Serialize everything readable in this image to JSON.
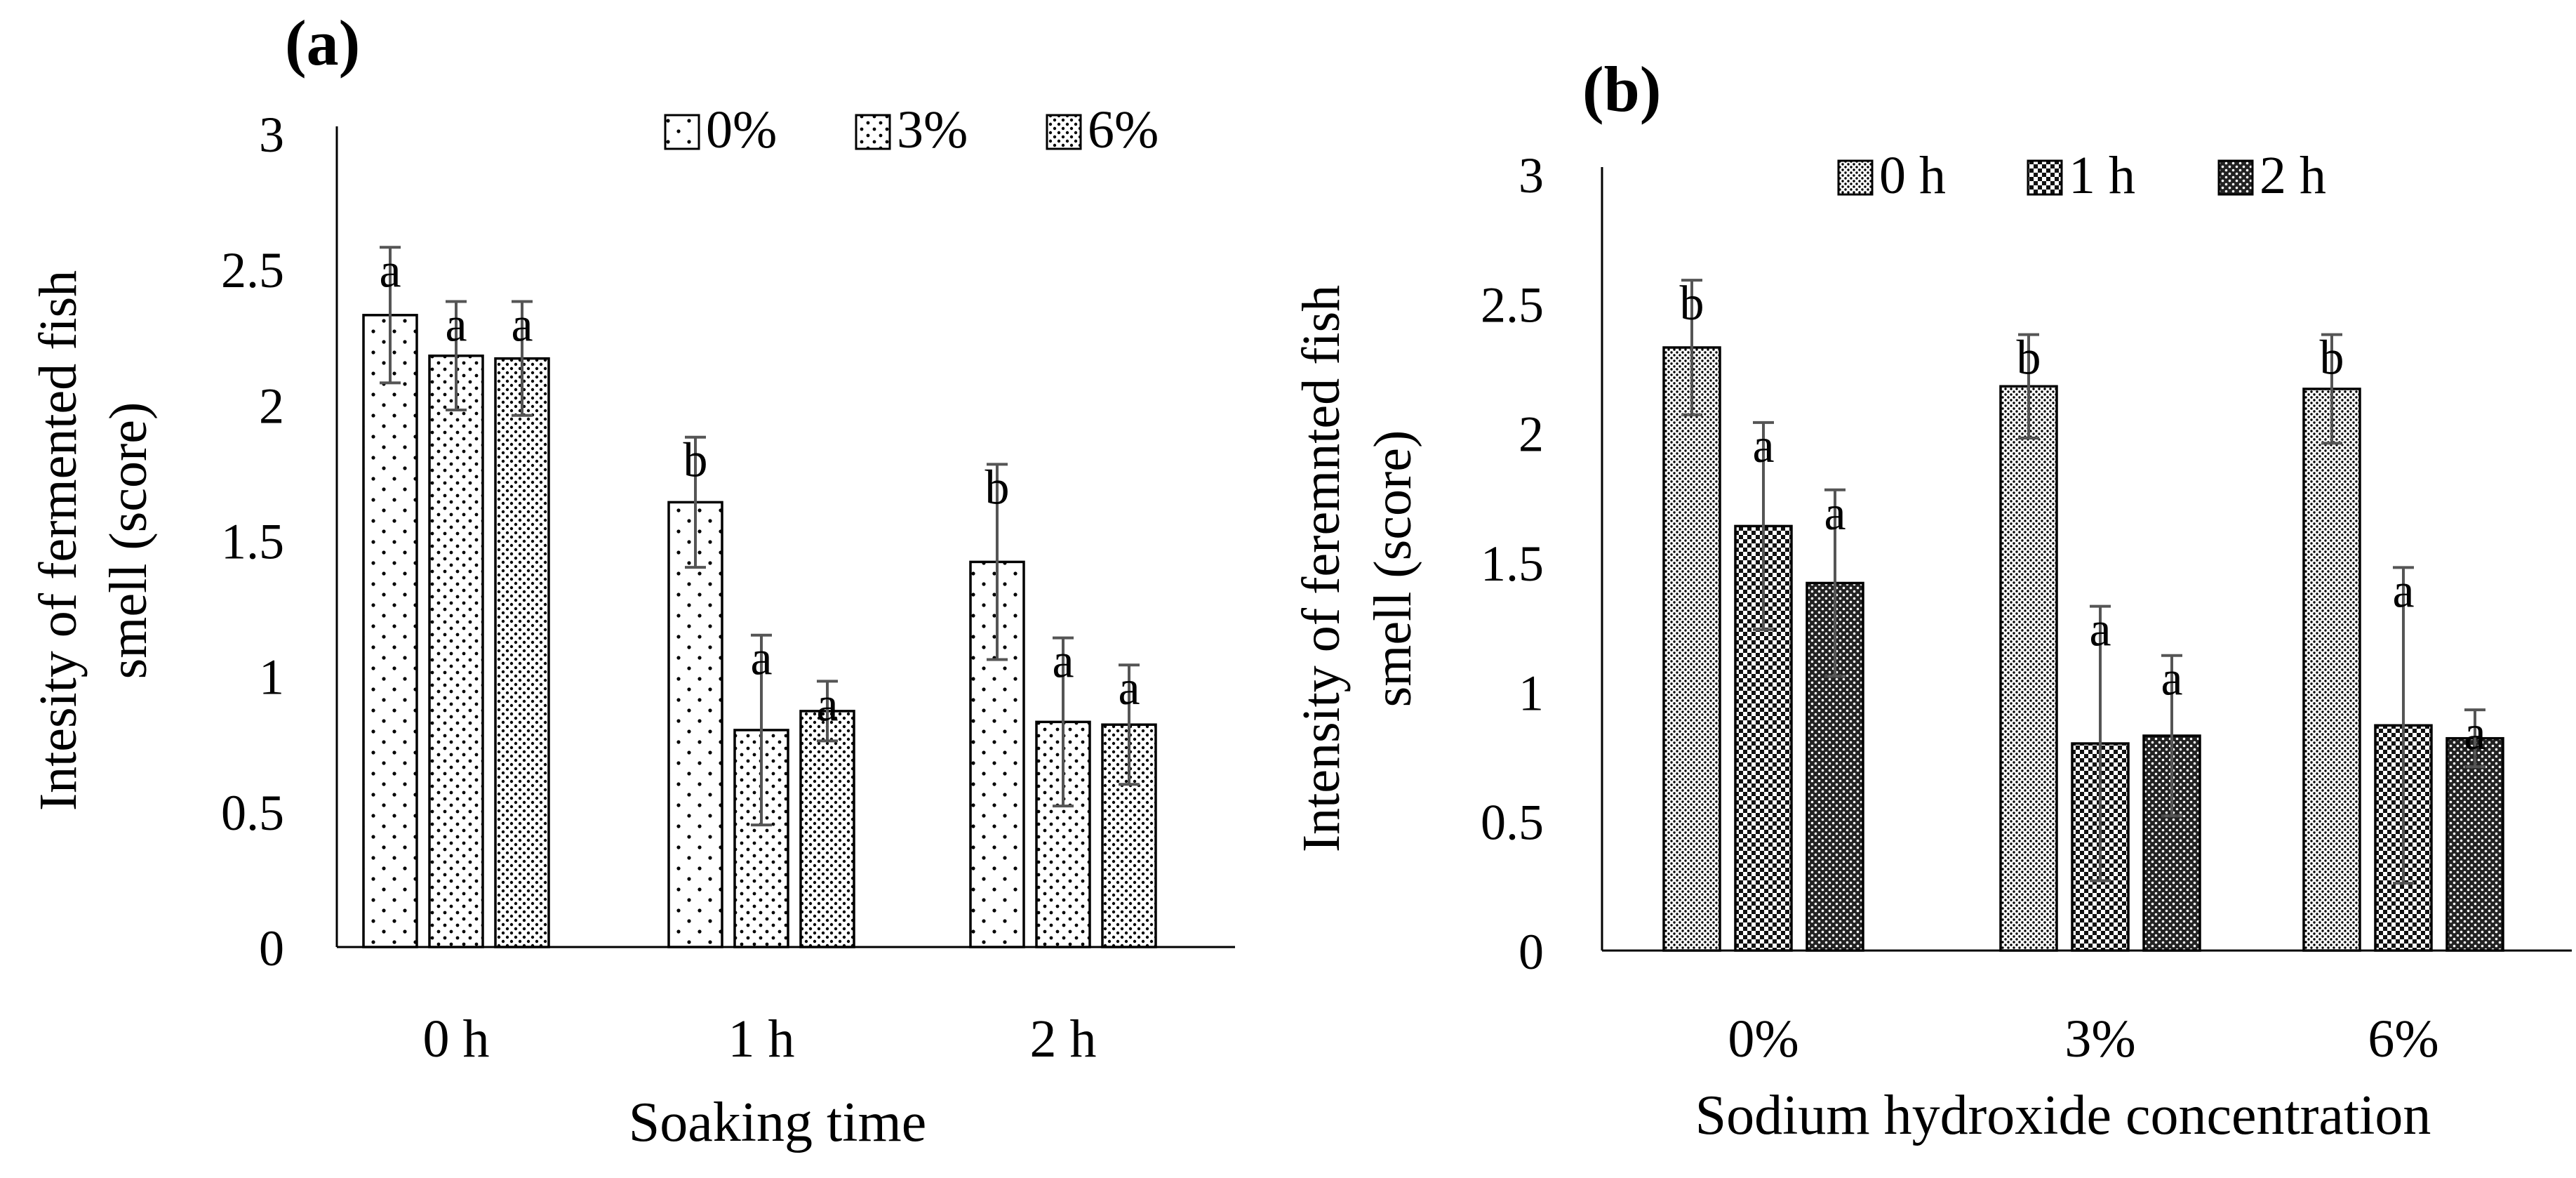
{
  "figure": {
    "panels": [
      "(a)",
      "(b)"
    ]
  },
  "chart_data": [
    {
      "type": "bar",
      "panel_label": "(a)",
      "title": "",
      "xlabel": "Soaking time",
      "ylabel_lines": [
        "Intesity of fermented fish",
        "smell (score)"
      ],
      "categories": [
        "0 h",
        "1 h",
        "2 h"
      ],
      "ylim": [
        0,
        3
      ],
      "yticks": [
        "0",
        "0.5",
        "1",
        "1.5",
        "2",
        "2.5",
        "3"
      ],
      "legend_position": "top-right",
      "series": [
        {
          "name": "0%",
          "pattern": "sparse",
          "values": [
            2.33,
            1.64,
            1.42
          ],
          "errors": [
            0.25,
            0.24,
            0.36
          ],
          "letters": [
            "a",
            "b",
            "b"
          ]
        },
        {
          "name": "3%",
          "pattern": "medium",
          "values": [
            2.18,
            0.8,
            0.83
          ],
          "errors": [
            0.2,
            0.35,
            0.31
          ],
          "letters": [
            "a",
            "a",
            "a"
          ]
        },
        {
          "name": "6%",
          "pattern": "dense",
          "values": [
            2.17,
            0.87,
            0.82
          ],
          "errors": [
            0.21,
            0.11,
            0.22
          ],
          "letters": [
            "a",
            "a",
            "a"
          ]
        }
      ]
    },
    {
      "type": "bar",
      "panel_label": "(b)",
      "title": "",
      "xlabel": "Sodium hydroxide concentration",
      "ylabel_lines": [
        "Intensity of feremnted fish",
        "smell (score)"
      ],
      "categories": [
        "0%",
        "3%",
        "6%"
      ],
      "ylim": [
        0,
        3
      ],
      "yticks": [
        "0",
        "0.5",
        "1",
        "1.5",
        "2",
        "2.5",
        "3"
      ],
      "legend_position": "top-right",
      "series": [
        {
          "name": "0 h",
          "pattern": "dots",
          "values": [
            2.33,
            2.18,
            2.17
          ],
          "errors": [
            0.26,
            0.2,
            0.21
          ],
          "letters": [
            "b",
            "b",
            "b"
          ]
        },
        {
          "name": "1 h",
          "pattern": "checker",
          "values": [
            1.64,
            0.8,
            0.87
          ],
          "errors": [
            0.4,
            0.53,
            0.61
          ],
          "letters": [
            "a",
            "a",
            "a"
          ]
        },
        {
          "name": "2 h",
          "pattern": "dark",
          "values": [
            1.42,
            0.83,
            0.82
          ],
          "errors": [
            0.36,
            0.31,
            0.11
          ],
          "letters": [
            "a",
            "a",
            "a"
          ]
        }
      ]
    }
  ]
}
